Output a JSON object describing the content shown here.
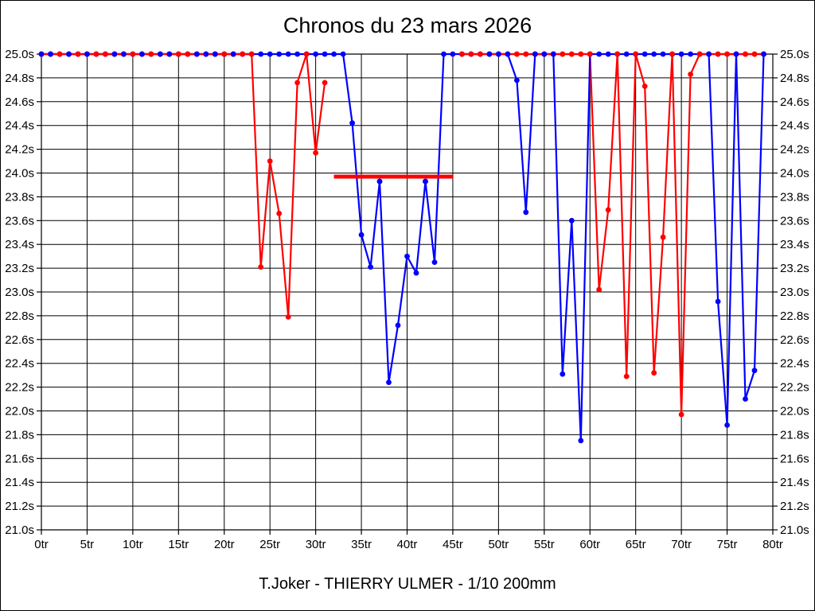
{
  "chart_data": {
    "type": "line",
    "title": "Chronos du 23 mars 2026",
    "caption": "T.Joker - THIERRY ULMER - 1/10 200mm",
    "x_unit": "tr",
    "y_unit": "s",
    "xlim": [
      0,
      80
    ],
    "ylim": [
      21.0,
      25.0
    ],
    "grid": "on",
    "legend": "none",
    "x_tick_labels": [
      "0tr",
      "5tr",
      "10tr",
      "15tr",
      "20tr",
      "25tr",
      "30tr",
      "35tr",
      "40tr",
      "45tr",
      "50tr",
      "55tr",
      "60tr",
      "65tr",
      "70tr",
      "75tr",
      "80tr"
    ],
    "y_tick_labels": [
      "25.0s",
      "24.8s",
      "24.6s",
      "24.4s",
      "24.2s",
      "24.0s",
      "23.8s",
      "23.6s",
      "23.4s",
      "23.2s",
      "23.0s",
      "22.8s",
      "22.6s",
      "22.4s",
      "22.2s",
      "22.0s",
      "21.8s",
      "21.6s",
      "21.4s",
      "21.2s",
      "21.0s"
    ],
    "y_labels_on_both_sides": true,
    "series": [
      {
        "name": "red-driver",
        "color": "#ff0000",
        "segments": [
          {
            "start_lap": 0,
            "values": [
              25,
              25,
              25,
              25,
              25,
              25,
              25,
              25,
              25,
              25,
              25,
              25,
              25,
              25,
              25,
              25,
              25,
              25,
              25,
              25,
              25,
              25,
              25,
              25,
              23.21,
              24.1,
              23.66,
              22.79,
              24.76,
              25,
              24.17,
              24.76
            ]
          },
          {
            "start_lap": 32,
            "flat_no_markers": true,
            "values": [
              23.97,
              23.97,
              23.97,
              23.97,
              23.97,
              23.97,
              23.97,
              23.97,
              23.97,
              23.97,
              23.97,
              23.97,
              23.97,
              23.97
            ]
          },
          {
            "start_lap": 46,
            "values": [
              25,
              25,
              25,
              25,
              25,
              25,
              25,
              25,
              25,
              25,
              25,
              25,
              25,
              25,
              25,
              23.02,
              23.69,
              25,
              22.29,
              25,
              24.73,
              22.32,
              23.46,
              25,
              21.97,
              24.83,
              25,
              25,
              25,
              25,
              25,
              25,
              25,
              25
            ]
          }
        ]
      },
      {
        "name": "blue-driver",
        "color": "#0000ff",
        "segments": [
          {
            "start_lap": 0,
            "values": [
              25,
              25,
              25,
              25,
              25,
              25,
              25,
              25,
              25,
              25,
              25,
              25,
              25,
              25,
              25,
              25,
              25,
              25,
              25,
              25,
              25,
              25,
              25,
              25,
              25,
              25,
              25,
              25,
              25,
              25,
              25,
              25,
              25,
              25,
              24.42,
              23.48,
              23.21,
              23.93,
              22.24,
              22.72,
              23.3,
              23.16,
              23.93,
              23.25,
              25,
              25,
              25,
              25,
              25,
              25,
              25,
              25,
              24.78,
              23.67,
              25,
              25,
              25,
              22.31,
              23.6,
              21.75,
              25,
              25,
              25,
              25,
              25,
              25,
              25,
              25,
              25,
              25,
              25,
              25,
              25,
              25,
              22.92,
              21.88,
              25,
              22.1,
              22.34,
              25
            ]
          }
        ]
      }
    ],
    "render_hints": {
      "red_line_overlay_ranges": [
        [
          0,
          23
        ],
        [
          46,
          60
        ],
        [
          72,
          79
        ]
      ],
      "red_flat_overlay_range": [
        32,
        45
      ],
      "blue_marker_overlay_laps": [
        0,
        1,
        3,
        5,
        8,
        9,
        11,
        13,
        14,
        17,
        18,
        19,
        21,
        37,
        42,
        49,
        50,
        51,
        54,
        55,
        56,
        73,
        76,
        79
      ],
      "red_marker_overlay_laps": [
        29,
        60,
        63,
        65,
        69,
        72
      ]
    }
  }
}
